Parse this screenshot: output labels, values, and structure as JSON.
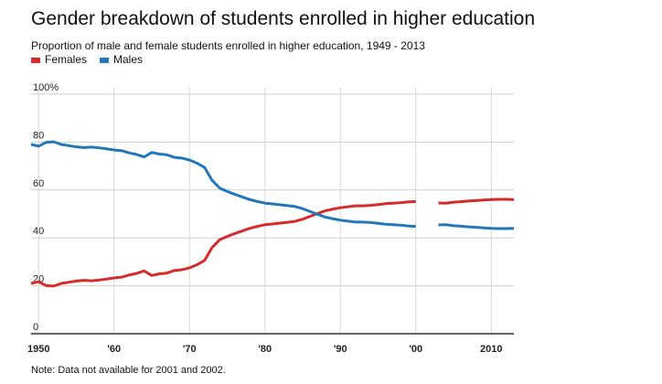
{
  "title": "Gender breakdown of students enrolled in higher education",
  "subtitle": "Proportion of male and female students enrolled in higher education, 1949 - 2013",
  "note": "Note: Data not available for 2001 and 2002.",
  "chart_data": {
    "type": "line",
    "title": "Gender breakdown of students enrolled in higher education",
    "subtitle": "Proportion of male and female students enrolled in higher education, 1949 - 2013",
    "xlabel": "",
    "ylabel": "",
    "xlim": [
      1949,
      2013
    ],
    "ylim": [
      0,
      100
    ],
    "y_ticks": [
      {
        "value": 0,
        "label": "0"
      },
      {
        "value": 20,
        "label": "20"
      },
      {
        "value": 40,
        "label": "40"
      },
      {
        "value": 60,
        "label": "60"
      },
      {
        "value": 80,
        "label": "80"
      },
      {
        "value": 100,
        "label": "100%"
      }
    ],
    "x_ticks": [
      {
        "value": 1950,
        "label": "1950"
      },
      {
        "value": 1960,
        "label": "'60"
      },
      {
        "value": 1970,
        "label": "'70"
      },
      {
        "value": 1980,
        "label": "'80"
      },
      {
        "value": 1990,
        "label": "'90"
      },
      {
        "value": 2000,
        "label": "'00"
      },
      {
        "value": 2010,
        "label": "2010"
      }
    ],
    "grid": true,
    "legend_position": "top-left",
    "series": [
      {
        "name": "Females",
        "color": "#d52b2b",
        "points": [
          [
            1949,
            21.0
          ],
          [
            1950,
            21.7
          ],
          [
            1951,
            20.1
          ],
          [
            1952,
            19.9
          ],
          [
            1953,
            21.0
          ],
          [
            1954,
            21.5
          ],
          [
            1955,
            22.0
          ],
          [
            1956,
            22.3
          ],
          [
            1957,
            22.1
          ],
          [
            1958,
            22.4
          ],
          [
            1959,
            22.8
          ],
          [
            1960,
            23.3
          ],
          [
            1961,
            23.6
          ],
          [
            1962,
            24.5
          ],
          [
            1963,
            25.2
          ],
          [
            1964,
            26.2
          ],
          [
            1965,
            24.3
          ],
          [
            1966,
            25.0
          ],
          [
            1967,
            25.3
          ],
          [
            1968,
            26.4
          ],
          [
            1969,
            26.7
          ],
          [
            1970,
            27.5
          ],
          [
            1971,
            28.8
          ],
          [
            1972,
            30.6
          ],
          [
            1973,
            36.0
          ],
          [
            1974,
            39.2
          ],
          [
            1975,
            40.6
          ],
          [
            1976,
            41.8
          ],
          [
            1977,
            42.9
          ],
          [
            1978,
            44.0
          ],
          [
            1979,
            44.8
          ],
          [
            1980,
            45.5
          ],
          [
            1981,
            45.8
          ],
          [
            1982,
            46.2
          ],
          [
            1983,
            46.5
          ],
          [
            1984,
            46.9
          ],
          [
            1985,
            47.8
          ],
          [
            1986,
            49.0
          ],
          [
            1987,
            50.2
          ],
          [
            1988,
            51.3
          ],
          [
            1989,
            52.0
          ],
          [
            1990,
            52.6
          ],
          [
            1991,
            53.0
          ],
          [
            1992,
            53.4
          ],
          [
            1993,
            53.4
          ],
          [
            1994,
            53.6
          ],
          [
            1995,
            53.9
          ],
          [
            1996,
            54.3
          ],
          [
            1997,
            54.5
          ],
          [
            1998,
            54.7
          ],
          [
            1999,
            55.0
          ],
          [
            2000,
            55.2
          ],
          null,
          [
            2003,
            54.6
          ],
          [
            2004,
            54.5
          ],
          [
            2005,
            54.9
          ],
          [
            2006,
            55.1
          ],
          [
            2007,
            55.4
          ],
          [
            2008,
            55.6
          ],
          [
            2009,
            55.8
          ],
          [
            2010,
            56.0
          ],
          [
            2011,
            56.1
          ],
          [
            2012,
            56.1
          ],
          [
            2013,
            56.0
          ]
        ]
      },
      {
        "name": "Males",
        "color": "#2277bb",
        "points": [
          [
            1949,
            79.0
          ],
          [
            1950,
            78.3
          ],
          [
            1951,
            79.9
          ],
          [
            1952,
            80.1
          ],
          [
            1953,
            79.0
          ],
          [
            1954,
            78.5
          ],
          [
            1955,
            78.0
          ],
          [
            1956,
            77.7
          ],
          [
            1957,
            77.9
          ],
          [
            1958,
            77.6
          ],
          [
            1959,
            77.2
          ],
          [
            1960,
            76.7
          ],
          [
            1961,
            76.4
          ],
          [
            1962,
            75.5
          ],
          [
            1963,
            74.8
          ],
          [
            1964,
            73.8
          ],
          [
            1965,
            75.7
          ],
          [
            1966,
            75.0
          ],
          [
            1967,
            74.7
          ],
          [
            1968,
            73.6
          ],
          [
            1969,
            73.3
          ],
          [
            1970,
            72.5
          ],
          [
            1971,
            71.2
          ],
          [
            1972,
            69.4
          ],
          [
            1973,
            64.0
          ],
          [
            1974,
            60.8
          ],
          [
            1975,
            59.4
          ],
          [
            1976,
            58.2
          ],
          [
            1977,
            57.1
          ],
          [
            1978,
            56.0
          ],
          [
            1979,
            55.2
          ],
          [
            1980,
            54.5
          ],
          [
            1981,
            54.2
          ],
          [
            1982,
            53.8
          ],
          [
            1983,
            53.5
          ],
          [
            1984,
            53.1
          ],
          [
            1985,
            52.2
          ],
          [
            1986,
            51.0
          ],
          [
            1987,
            49.8
          ],
          [
            1988,
            48.7
          ],
          [
            1989,
            48.0
          ],
          [
            1990,
            47.4
          ],
          [
            1991,
            47.0
          ],
          [
            1992,
            46.6
          ],
          [
            1993,
            46.6
          ],
          [
            1994,
            46.4
          ],
          [
            1995,
            46.1
          ],
          [
            1996,
            45.7
          ],
          [
            1997,
            45.5
          ],
          [
            1998,
            45.3
          ],
          [
            1999,
            45.0
          ],
          [
            2000,
            44.8
          ],
          null,
          [
            2003,
            45.4
          ],
          [
            2004,
            45.5
          ],
          [
            2005,
            45.1
          ],
          [
            2006,
            44.9
          ],
          [
            2007,
            44.6
          ],
          [
            2008,
            44.4
          ],
          [
            2009,
            44.2
          ],
          [
            2010,
            44.0
          ],
          [
            2011,
            43.9
          ],
          [
            2012,
            43.9
          ],
          [
            2013,
            44.0
          ]
        ]
      }
    ]
  }
}
